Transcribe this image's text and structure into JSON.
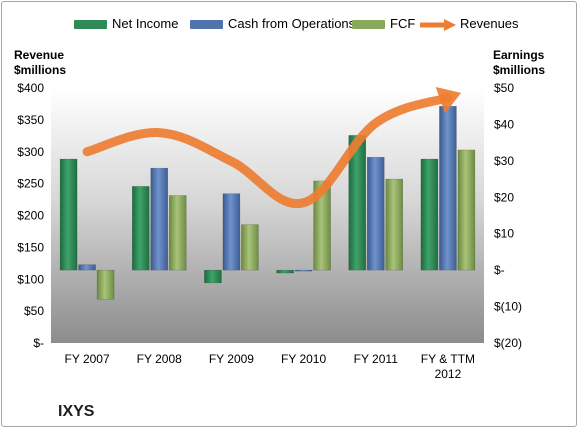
{
  "chart_data": {
    "type": "bar",
    "categories": [
      "FY 2007",
      "FY 2008",
      "FY 2009",
      "FY 2010",
      "FY 2011",
      "FY & TTM 2012"
    ],
    "series": [
      {
        "name": "Net Income",
        "axis": "right",
        "color": "#2e8b57",
        "values": [
          30.5,
          23,
          -3.5,
          -0.8,
          37,
          30.5
        ]
      },
      {
        "name": "Cash from Operations",
        "axis": "right",
        "color": "#4f73ad",
        "values": [
          1.5,
          28,
          21,
          -0.2,
          31,
          45
        ]
      },
      {
        "name": "FCF",
        "axis": "right",
        "color": "#8aa85a",
        "values": [
          -8,
          20.5,
          12.5,
          24.5,
          25,
          33
        ]
      },
      {
        "name": "Revenues",
        "type": "line",
        "axis": "left",
        "color": "#ed7d31",
        "values": [
          300,
          330,
          285,
          220,
          345,
          385
        ]
      }
    ],
    "ylabel": "Revenue $millions",
    "ylabel_right": "Earnings $millions",
    "ylim": [
      0,
      400
    ],
    "ylim_right": [
      -20,
      50
    ],
    "yticks": [
      "$-",
      "$50",
      "$100",
      "$150",
      "$200",
      "$250",
      "$300",
      "$350",
      "$400"
    ],
    "yticks_right": [
      "$(20)",
      "$(10)",
      "$-",
      "$10",
      "$20",
      "$30",
      "$40",
      "$50"
    ],
    "legend": "top",
    "grid": false,
    "company": "IXYS"
  },
  "legend": {
    "net_income": "Net Income",
    "cfo": "Cash from Operations",
    "fcf": "FCF",
    "revenues": "Revenues"
  },
  "axis_titles": {
    "left_line1": "Revenue",
    "left_line2": "$millions",
    "right_line1": "Earnings",
    "right_line2": "$millions"
  },
  "footer": {
    "company": "IXYS"
  }
}
